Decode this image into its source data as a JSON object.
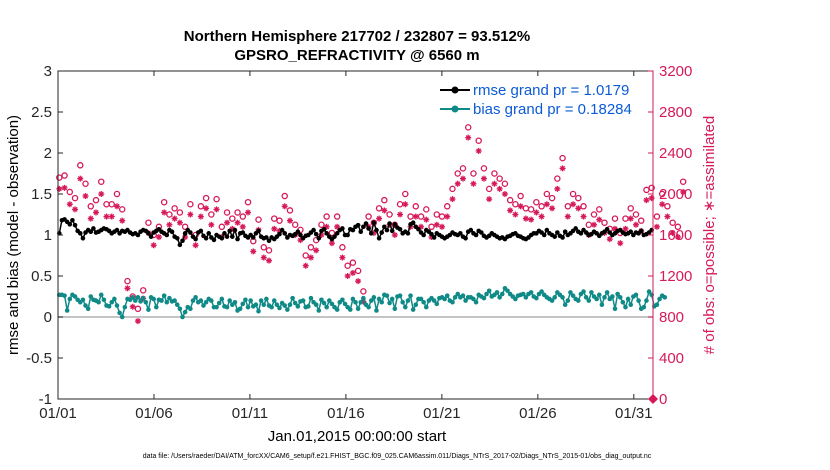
{
  "chart_data": {
    "type": "line",
    "title_line1": "Northern Hemisphere 217702 / 232807 = 93.512%",
    "title_line2": "GPSRO_REFRACTIVITY @ 6560 m",
    "xlabel": "Jan.01,2015 00:00:00 start",
    "ylabel_left": "rmse and bias (model - observation)",
    "ylabel_right": "# of obs: o=possible; ∗=assimilated",
    "footnote": "data file: /Users/raeder/DAI/ATM_forcXX/CAM6_setup/f.e21.FHIST_BGC.f09_025.CAM6assim.011/Diags_NTrS_2017-02/Diags_NTrS_2015-01/obs_diag_output.nc",
    "x_ticks": [
      1,
      6,
      11,
      16,
      21,
      26,
      31
    ],
    "x_tick_labels": [
      "01/01",
      "01/06",
      "01/11",
      "01/16",
      "01/21",
      "01/26",
      "01/31"
    ],
    "xlim": [
      1,
      32
    ],
    "ylim_left": [
      -1,
      3
    ],
    "y_ticks_left": [
      -1,
      -0.5,
      0,
      0.5,
      1,
      1.5,
      2,
      2.5,
      3
    ],
    "y_tick_labels_left": [
      "-1",
      "-0.5",
      "0",
      "0.5",
      "1",
      "1.5",
      "2",
      "2.5",
      "3"
    ],
    "ylim_right": [
      0,
      3200
    ],
    "y_ticks_right": [
      0,
      400,
      800,
      1200,
      1600,
      2000,
      2400,
      2800,
      3200
    ],
    "y_tick_labels_right": [
      "0",
      "400",
      "800",
      "1200",
      "1600",
      "2000",
      "2400",
      "2800",
      "3200"
    ],
    "zero_line": 0,
    "legend_position": "top-right",
    "colors": {
      "rmse": "#000000",
      "bias": "#0f8a87",
      "obs": "#d6195a",
      "zero": "#b0b0b0",
      "legend_text": "#0b5bd6"
    },
    "series": [
      {
        "name": "rmse grand pr = 1.0179",
        "axis": "left",
        "values": [
          1.02,
          1.18,
          1.19,
          1.16,
          1.13,
          1.18,
          1.12,
          1.05,
          1.02,
          0.96,
          1.03,
          1.06,
          1.04,
          1.08,
          1.03,
          1.04,
          1.06,
          1.08,
          1.07,
          1.05,
          1.02,
          1.04,
          1.06,
          1.02,
          1.05,
          1.04,
          1.06,
          1.03,
          1.01,
          1.02,
          1.0,
          1.04,
          1.06,
          1.05,
          1.02,
          0.98,
          1.03,
          1.05,
          1.07,
          1.04,
          1.02,
          1.0,
          1.06,
          1.04,
          0.98,
          0.96,
          0.88,
          0.93,
          1.02,
          1.06,
          1.03,
          0.98,
          0.95,
          1.03,
          1.05,
          0.99,
          0.96,
          1.02,
          0.97,
          0.94,
          1.0,
          0.98,
          0.96,
          1.02,
          0.98,
          1.05,
          0.98,
          1.06,
          0.95,
          1.02,
          1.03,
          0.99,
          0.97,
          1.0,
          0.97,
          1.02,
          1.05,
          0.98,
          0.96,
          0.97,
          0.93,
          0.97,
          0.95,
          0.98,
          1.01,
          1.06,
          1.02,
          0.97,
          1.0,
          0.99,
          1.01,
          1.04,
          1.0,
          0.96,
          0.99,
          1.0,
          1.03,
          1.06,
          1.01,
          0.96,
          1.05,
          1.07,
          1.02,
          0.98,
          0.95,
          0.98,
          1.02,
          1.06,
          1.08,
          1.0,
          1.0,
          1.07,
          1.06,
          1.1,
          1.12,
          1.04,
          1.1,
          1.14,
          1.08,
          1.02,
          1.15,
          1.06,
          0.96,
          1.03,
          1.1,
          1.06,
          1.14,
          1.05,
          1.13,
          1.09,
          1.07,
          1.02,
          1.04,
          1.02,
          1.13,
          1.15,
          1.1,
          1.07,
          1.03,
          1.0,
          1.06,
          1.04,
          1.01,
          0.97,
          1.02,
          1.0,
          0.98,
          0.96,
          0.98,
          1.0,
          1.03,
          1.01,
          1.0,
          1.02,
          0.98,
          0.96,
          1.04,
          1.06,
          1.02,
          1.0,
          1.05,
          1.03,
          0.99,
          0.97,
          0.99,
          1.02,
          1.0,
          0.98,
          0.96,
          0.97,
          0.95,
          0.98,
          0.99,
          1.01,
          1.02,
          0.99,
          0.98,
          0.96,
          0.95,
          0.97,
          1.0,
          1.02,
          1.02,
          1.05,
          1.03,
          1.0,
          1.06,
          1.02,
          1.0,
          0.98,
          1.03,
          0.99,
          0.97,
          1.04,
          1.0,
          1.02,
          1.05,
          1.08,
          1.04,
          1.02,
          1.06,
          1.03,
          1.0,
          1.01,
          1.04,
          1.02,
          0.99,
          1.02,
          1.04,
          1.07,
          1.03,
          1.0,
          1.02,
          1.05,
          1.06,
          1.03,
          1.01,
          1.02,
          1.04,
          1.0,
          1.03,
          1.02,
          1.05,
          1.0,
          1.01,
          1.03,
          1.06
        ]
      },
      {
        "name": "bias grand pr = 0.18284",
        "axis": "left",
        "values": [
          0.27,
          0.27,
          0.26,
          0.08,
          0.22,
          0.27,
          0.25,
          0.21,
          0.18,
          0.21,
          0.14,
          0.1,
          0.25,
          0.21,
          0.2,
          0.18,
          0.27,
          0.21,
          0.14,
          0.13,
          0.18,
          0.22,
          0.14,
          0.05,
          0.0,
          0.12,
          0.22,
          0.21,
          0.24,
          0.2,
          0.24,
          0.19,
          0.23,
          0.18,
          0.09,
          0.24,
          0.22,
          0.12,
          0.21,
          0.2,
          0.26,
          0.18,
          0.23,
          0.19,
          0.2,
          0.15,
          0.1,
          0.0,
          0.06,
          0.12,
          0.1,
          0.2,
          0.24,
          0.18,
          0.2,
          0.14,
          0.18,
          0.22,
          0.2,
          0.12,
          0.12,
          0.17,
          0.22,
          0.13,
          0.12,
          0.2,
          0.15,
          0.18,
          0.08,
          0.1,
          0.16,
          0.21,
          0.12,
          0.2,
          0.13,
          0.15,
          0.07,
          0.2,
          0.15,
          0.22,
          0.14,
          0.12,
          0.2,
          0.15,
          0.11,
          0.17,
          0.14,
          0.09,
          0.15,
          0.23,
          0.17,
          0.13,
          0.19,
          0.2,
          0.12,
          0.13,
          0.23,
          0.18,
          0.15,
          0.08,
          0.21,
          0.17,
          0.12,
          0.2,
          0.16,
          0.12,
          0.09,
          0.18,
          0.21,
          0.16,
          0.12,
          0.09,
          0.22,
          0.18,
          0.1,
          0.18,
          0.23,
          0.15,
          0.12,
          0.2,
          0.24,
          0.08,
          0.22,
          0.18,
          0.27,
          0.26,
          0.17,
          0.22,
          0.1,
          0.25,
          0.26,
          0.18,
          0.12,
          0.2,
          0.26,
          0.09,
          0.15,
          0.22,
          0.22,
          0.18,
          0.12,
          0.2,
          0.23,
          0.2,
          0.16,
          0.23,
          0.24,
          0.22,
          0.26,
          0.2,
          0.18,
          0.24,
          0.28,
          0.24,
          0.26,
          0.2,
          0.24,
          0.24,
          0.22,
          0.18,
          0.27,
          0.25,
          0.23,
          0.28,
          0.32,
          0.25,
          0.27,
          0.3,
          0.24,
          0.28,
          0.35,
          0.32,
          0.28,
          0.25,
          0.22,
          0.26,
          0.27,
          0.28,
          0.24,
          0.28,
          0.3,
          0.25,
          0.23,
          0.28,
          0.31,
          0.27,
          0.24,
          0.22,
          0.2,
          0.24,
          0.3,
          0.27,
          0.24,
          0.15,
          0.2,
          0.3,
          0.26,
          0.22,
          0.2,
          0.28,
          0.31,
          0.24,
          0.2,
          0.3,
          0.25,
          0.22,
          0.27,
          0.15,
          0.24,
          0.3,
          0.22,
          0.25,
          0.1,
          0.28,
          0.24,
          0.18,
          0.12,
          0.22,
          0.15,
          0.25,
          0.27,
          0.2,
          0.1,
          0.12,
          0.2,
          0.31,
          0.27,
          0.13,
          0.15,
          0.22,
          0.26,
          0.24
        ]
      },
      {
        "name": "possible",
        "axis": "right",
        "marker": "o",
        "values": [
          2160,
          2220,
          2180,
          2250,
          2020,
          1860,
          1960,
          2050,
          2280,
          2180,
          2100,
          1950,
          1880,
          1800,
          1940,
          2080,
          2120,
          1880,
          1900,
          1780,
          1900,
          1960,
          2000,
          2020,
          1850,
          1280,
          1150,
          1130,
          1000,
          950,
          880,
          1020,
          1060,
          1350,
          1720,
          1720,
          1600,
          1800,
          1680,
          1880,
          1920,
          1650,
          1800,
          1720,
          1860,
          1900,
          1820,
          1800,
          1680,
          1480,
          1900,
          1760,
          1600,
          1780,
          1880,
          1720,
          1960,
          2080,
          1800,
          1820,
          1950,
          1840,
          1680,
          1760,
          1820,
          1860,
          1760,
          1700,
          1820,
          1750,
          1780,
          1800,
          1920,
          1700,
          1540,
          1780,
          1750,
          1600,
          1480,
          1700,
          1450,
          1640,
          1760,
          1820,
          1740,
          1800,
          1980,
          2040,
          1840,
          1620,
          1700,
          1760,
          1650,
          1560,
          1400,
          1580,
          1480,
          1640,
          1550,
          1400,
          1700,
          1520,
          1780,
          1580,
          1620,
          1700,
          1780,
          1560,
          1480,
          1600,
          1300,
          1380,
          1330,
          1200,
          1250,
          1100,
          1050,
          1120,
          1780,
          1850,
          1720,
          1760,
          1860,
          1900,
          1940,
          1840,
          1800,
          1780,
          1700,
          1860,
          1900,
          1950,
          2000,
          1860,
          1780,
          1760,
          1880,
          1740,
          1780,
          1800,
          1850,
          1820,
          1680,
          1760,
          1800,
          1900,
          1780,
          1720,
          1880,
          2000,
          2050,
          2100,
          2200,
          2150,
          2250,
          2400,
          2650,
          2300,
          2200,
          2450,
          2520,
          2350,
          2250,
          2380,
          2050,
          2100,
          2200,
          2100,
          2150,
          2050,
          2100,
          1980,
          1940,
          1880,
          1900,
          1920,
          1980,
          2050,
          1860,
          1780,
          1850,
          1720,
          1920,
          1820,
          1880,
          1950,
          2000,
          1920,
          1960,
          2000,
          2150,
          2050,
          2350,
          2000,
          1880,
          1820,
          2000,
          1940,
          1960,
          1800,
          1880,
          1850,
          1700,
          1740,
          1800,
          1780,
          1850,
          1700,
          1720,
          1650,
          1660,
          1750,
          1760,
          1700,
          1620,
          1680,
          1760,
          1820,
          1860,
          1700,
          1800,
          1880,
          1740,
          1900,
          2040,
          2200,
          2060,
          1850,
          1780,
          1900,
          2000,
          2080,
          1880,
          1920,
          1720,
          1960,
          1680,
          1860,
          2120,
          1930
        ]
      },
      {
        "name": "assimilated",
        "axis": "right",
        "marker": "asterisk",
        "values": [
          2050,
          2120,
          2060,
          2150,
          1900,
          1750,
          1850,
          1920,
          2150,
          2060,
          1980,
          1820,
          1760,
          1680,
          1820,
          1960,
          2000,
          1760,
          1780,
          1660,
          1780,
          1840,
          1880,
          1900,
          1740,
          1200,
          1080,
          1060,
          900,
          820,
          760,
          940,
          980,
          1260,
          1620,
          1620,
          1500,
          1700,
          1580,
          1780,
          1820,
          1550,
          1700,
          1620,
          1760,
          1800,
          1720,
          1700,
          1580,
          1380,
          1800,
          1660,
          1500,
          1680,
          1780,
          1620,
          1860,
          1980,
          1700,
          1720,
          1850,
          1740,
          1580,
          1660,
          1720,
          1760,
          1660,
          1600,
          1720,
          1650,
          1680,
          1700,
          1820,
          1600,
          1440,
          1680,
          1650,
          1500,
          1380,
          1600,
          1350,
          1540,
          1660,
          1720,
          1640,
          1700,
          1880,
          1940,
          1740,
          1520,
          1600,
          1660,
          1550,
          1460,
          1300,
          1480,
          1380,
          1540,
          1450,
          1300,
          1600,
          1420,
          1680,
          1480,
          1520,
          1600,
          1680,
          1460,
          1380,
          1500,
          1200,
          1280,
          1230,
          1100,
          1150,
          1000,
          950,
          1020,
          1680,
          1750,
          1620,
          1660,
          1760,
          1800,
          1840,
          1740,
          1700,
          1680,
          1600,
          1760,
          1800,
          1850,
          1900,
          1760,
          1680,
          1660,
          1780,
          1640,
          1680,
          1700,
          1750,
          1720,
          1580,
          1660,
          1700,
          1800,
          1680,
          1620,
          1780,
          1900,
          1950,
          2000,
          2100,
          2050,
          2150,
          2300,
          2550,
          2200,
          2100,
          2350,
          2420,
          2250,
          2150,
          2280,
          1950,
          2000,
          2100,
          2000,
          2050,
          1950,
          2000,
          1880,
          1840,
          1780,
          1800,
          1820,
          1880,
          1950,
          1760,
          1680,
          1750,
          1620,
          1820,
          1720,
          1780,
          1850,
          1900,
          1820,
          1860,
          1900,
          2050,
          1950,
          2250,
          1900,
          1780,
          1720,
          1900,
          1840,
          1860,
          1700,
          1780,
          1750,
          1600,
          1640,
          1700,
          1680,
          1750,
          1600,
          1620,
          1550,
          1560,
          1650,
          1660,
          1600,
          1520,
          1580,
          1660,
          1720,
          1760,
          1600,
          1700,
          1780,
          1640,
          1800,
          1940,
          2100,
          1960,
          1750,
          1680,
          1800,
          1900,
          1980,
          1780,
          1820,
          1620,
          1860,
          1580,
          1760,
          2020,
          1830
        ]
      }
    ]
  },
  "legend": {
    "rmse": "rmse grand pr = 1.0179",
    "bias": "bias grand pr = 0.18284"
  }
}
